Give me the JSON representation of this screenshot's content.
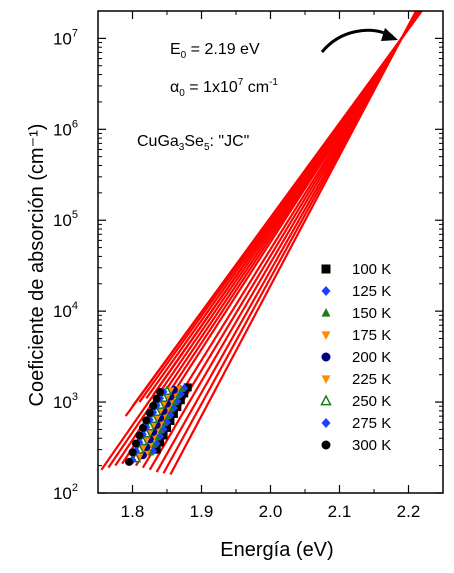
{
  "chart_data": {
    "type": "scatter",
    "title": "",
    "xlabel": "Energía  (eV)",
    "ylabel": "Coeficiente de absorción  (cm⁻¹)",
    "xlim": [
      1.75,
      2.25
    ],
    "ylim": [
      100,
      20000000
    ],
    "y_scale": "log",
    "x_ticks": [
      "1.8",
      "1.9",
      "2.0",
      "2.1",
      "2.2"
    ],
    "y_ticks": [
      {
        "value": 100,
        "base": "10",
        "exp": "2"
      },
      {
        "value": 1000,
        "base": "10",
        "exp": "3"
      },
      {
        "value": 10000,
        "base": "10",
        "exp": "4"
      },
      {
        "value": 100000,
        "base": "10",
        "exp": "5"
      },
      {
        "value": 1000000,
        "base": "10",
        "exp": "6"
      },
      {
        "value": 10000000,
        "base": "10",
        "exp": "7"
      }
    ],
    "grid": false,
    "legend_placement": "right-center",
    "annotations": {
      "sample": {
        "main": "CuGa",
        "sub1": "3",
        "mid": "Se",
        "sub2": "5",
        "rest": ": \"JC\""
      },
      "e0": {
        "main": "E",
        "sub": "0",
        "rest": " = 2.19 eV"
      },
      "alpha0": {
        "main": "α",
        "sub": "0",
        "rest": " = 1x10",
        "sup": "7",
        "tail": " cm",
        "sup2": "-1"
      }
    },
    "convergence_point": {
      "x": 2.19,
      "y": 10000000
    },
    "fit_color": "#ff0000",
    "fits": [
      {
        "x_start": 1.755,
        "y_start": 180
      },
      {
        "x_start": 1.765,
        "y_start": 190
      },
      {
        "x_start": 1.775,
        "y_start": 200
      },
      {
        "x_start": 1.785,
        "y_start": 210
      },
      {
        "x_start": 1.795,
        "y_start": 220
      },
      {
        "x_start": 1.805,
        "y_start": 200
      },
      {
        "x_start": 1.815,
        "y_start": 190
      },
      {
        "x_start": 1.825,
        "y_start": 180
      },
      {
        "x_start": 1.835,
        "y_start": 170
      },
      {
        "x_start": 1.845,
        "y_start": 165
      },
      {
        "x_start": 1.855,
        "y_start": 160
      },
      {
        "x_start": 1.8,
        "y_start": 900
      },
      {
        "x_start": 1.81,
        "y_start": 1000
      },
      {
        "x_start": 1.82,
        "y_start": 1100
      },
      {
        "x_start": 1.83,
        "y_start": 1200
      },
      {
        "x_start": 1.79,
        "y_start": 700
      }
    ],
    "series": [
      {
        "name": "100 K",
        "color": "#000000",
        "marker": "square",
        "x": [
          1.835,
          1.84,
          1.845,
          1.85,
          1.855,
          1.86,
          1.865,
          1.87,
          1.875,
          1.88
        ],
        "y": [
          300,
          360,
          430,
          520,
          620,
          740,
          880,
          1050,
          1250,
          1450
        ]
      },
      {
        "name": "125 K",
        "color": "#1f3fff",
        "marker": "diamond",
        "x": [
          1.83,
          1.835,
          1.84,
          1.845,
          1.85,
          1.855,
          1.86,
          1.865,
          1.87,
          1.875
        ],
        "y": [
          290,
          350,
          420,
          500,
          600,
          720,
          860,
          1020,
          1220,
          1420
        ]
      },
      {
        "name": "150 K",
        "color": "#1e7a1e",
        "marker": "triangle-up",
        "x": [
          1.825,
          1.83,
          1.835,
          1.84,
          1.845,
          1.85,
          1.855,
          1.86,
          1.865,
          1.87
        ],
        "y": [
          280,
          340,
          410,
          490,
          590,
          700,
          840,
          1000,
          1190,
          1400
        ]
      },
      {
        "name": "175 K",
        "color": "#ff8c00",
        "marker": "triangle-down",
        "x": [
          1.82,
          1.825,
          1.83,
          1.835,
          1.84,
          1.845,
          1.85,
          1.855,
          1.86,
          1.865
        ],
        "y": [
          270,
          330,
          400,
          480,
          570,
          690,
          820,
          980,
          1170,
          1380
        ]
      },
      {
        "name": "200 K",
        "color": "#000080",
        "marker": "circle",
        "x": [
          1.815,
          1.82,
          1.825,
          1.83,
          1.835,
          1.84,
          1.845,
          1.85,
          1.855,
          1.86
        ],
        "y": [
          260,
          320,
          390,
          470,
          560,
          670,
          800,
          960,
          1150,
          1360
        ]
      },
      {
        "name": "225 K",
        "color": "#ff8c00",
        "marker": "triangle-down",
        "x": [
          1.81,
          1.815,
          1.82,
          1.825,
          1.83,
          1.835,
          1.84,
          1.845,
          1.85,
          1.855
        ],
        "y": [
          250,
          310,
          380,
          460,
          550,
          660,
          790,
          940,
          1130,
          1340
        ]
      },
      {
        "name": "250 K",
        "color": "#1e7a1e",
        "marker": "triangle-up-open",
        "x": [
          1.805,
          1.81,
          1.815,
          1.82,
          1.825,
          1.83,
          1.835,
          1.84,
          1.845,
          1.85
        ],
        "y": [
          240,
          300,
          370,
          450,
          540,
          650,
          780,
          930,
          1110,
          1320
        ]
      },
      {
        "name": "275 K",
        "color": "#1f3fff",
        "marker": "diamond",
        "x": [
          1.8,
          1.805,
          1.81,
          1.815,
          1.82,
          1.825,
          1.83,
          1.835,
          1.84,
          1.845
        ],
        "y": [
          230,
          290,
          360,
          440,
          530,
          640,
          770,
          920,
          1100,
          1300
        ]
      },
      {
        "name": "300 K",
        "color": "#000000",
        "marker": "circle",
        "x": [
          1.795,
          1.8,
          1.805,
          1.81,
          1.815,
          1.82,
          1.825,
          1.83,
          1.835,
          1.84
        ],
        "y": [
          220,
          280,
          350,
          430,
          520,
          630,
          760,
          910,
          1090,
          1290
        ]
      }
    ]
  }
}
